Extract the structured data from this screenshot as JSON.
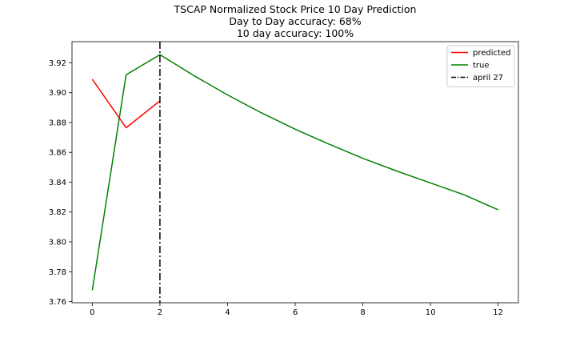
{
  "chart_data": {
    "type": "line",
    "title_lines": [
      "TSCAP Normalized Stock Price 10 Day Prediction",
      "Day to Day accuracy: 68%",
      "10 day accuracy: 100%"
    ],
    "xlabel": "",
    "ylabel": "",
    "xlim": [
      -0.6,
      12.6
    ],
    "ylim": [
      3.7592,
      3.9342
    ],
    "x_ticks": [
      0,
      2,
      4,
      6,
      8,
      10,
      12
    ],
    "y_ticks": [
      3.76,
      3.78,
      3.8,
      3.82,
      3.84,
      3.86,
      3.88,
      3.9,
      3.92
    ],
    "y_tick_labels": [
      "3.76",
      "3.78",
      "3.80",
      "3.82",
      "3.84",
      "3.86",
      "3.88",
      "3.90",
      "3.92"
    ],
    "grid": false,
    "legend_position": "top-right",
    "series": [
      {
        "name": "predicted",
        "color": "#ff0000",
        "x": [
          0,
          1,
          2
        ],
        "y": [
          3.909,
          3.8765,
          3.8945
        ]
      },
      {
        "name": "true",
        "color": "#008000",
        "x": [
          0,
          1,
          2,
          3,
          4,
          5,
          6,
          7,
          8,
          9,
          10,
          11,
          12
        ],
        "y": [
          3.7675,
          3.912,
          3.9255,
          3.9115,
          3.8985,
          3.8865,
          3.8755,
          3.8655,
          3.856,
          3.8475,
          3.8395,
          3.8315,
          3.8215
        ]
      }
    ],
    "vlines": [
      {
        "name": "april 27",
        "x": 2,
        "color": "#000000",
        "style": "dash-dot"
      }
    ]
  }
}
